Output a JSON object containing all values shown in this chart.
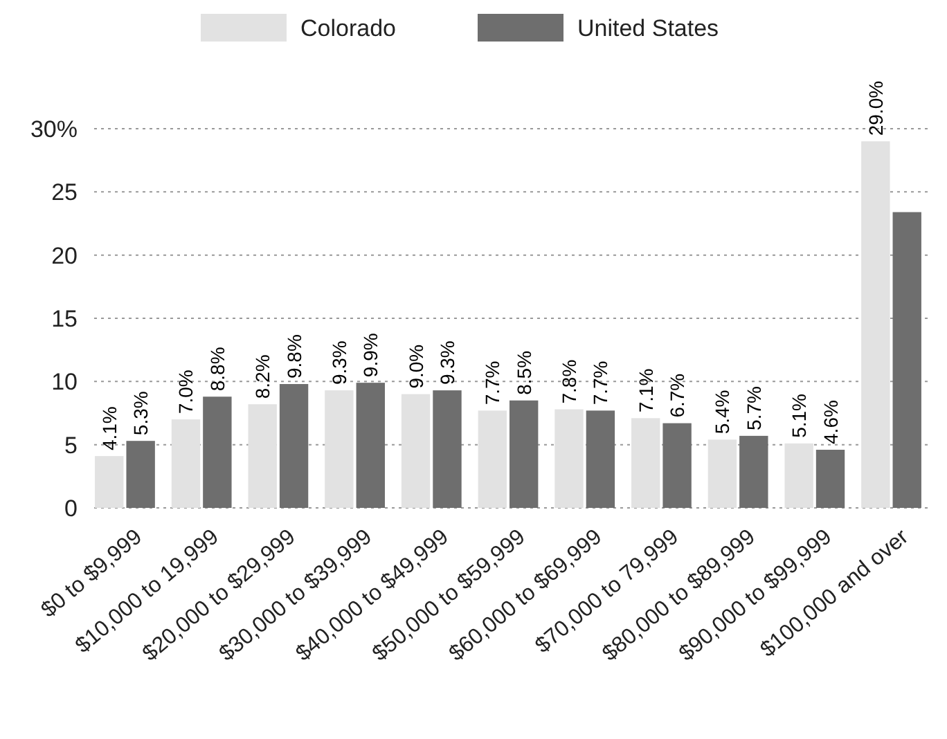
{
  "chart_data": {
    "type": "bar",
    "categories": [
      "$0 to $9,999",
      "$10,000 to 19,999",
      "$20,000 to $29,999",
      "$30,000 to $39,999",
      "$40,000 to $49,999",
      "$50,000 to $59,999",
      "$60,000 to $69,999",
      "$70,000 to 79,999",
      "$80,000 to $89,999",
      "$90,000 to $99,999",
      "$100,000 and over"
    ],
    "series": [
      {
        "name": "Colorado",
        "color": "#e2e2e2",
        "values": [
          4.1,
          7.0,
          8.2,
          9.3,
          9.0,
          7.7,
          7.8,
          7.1,
          5.4,
          5.1,
          29.0
        ],
        "value_labels": [
          "4.1%",
          "7.0%",
          "8.2%",
          "9.3%",
          "9.0%",
          "7.7%",
          "7.8%",
          "7.1%",
          "5.4%",
          "5.1%",
          "29.0%"
        ]
      },
      {
        "name": "United States",
        "color": "#6e6e6e",
        "values": [
          5.3,
          8.8,
          9.8,
          9.9,
          9.3,
          8.5,
          7.7,
          6.7,
          5.7,
          4.6,
          23.4
        ],
        "value_labels": [
          "5.3%",
          "8.8%",
          "9.8%",
          "9.9%",
          "9.3%",
          "8.5%",
          "7.7%",
          "6.7%",
          "5.7%",
          "4.6%",
          null
        ]
      }
    ],
    "ylim": [
      0,
      30
    ],
    "yticks": [
      0,
      5,
      10,
      15,
      20,
      25,
      {
        "value": 30,
        "label": "30%"
      }
    ],
    "grid": "y",
    "legend": "top"
  }
}
